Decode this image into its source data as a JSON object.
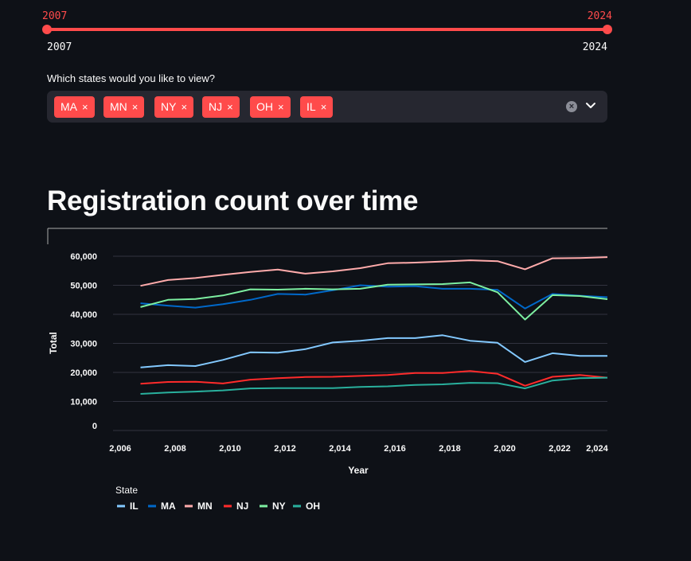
{
  "slider": {
    "min_label": "2007",
    "max_label": "2024",
    "value_low": "2007",
    "value_high": "2024",
    "accent_color": "#ff4b4b"
  },
  "multiselect": {
    "label": "Which states would you like to view?",
    "tags": [
      "MA",
      "MN",
      "NY",
      "NJ",
      "OH",
      "IL"
    ],
    "remove_glyph": "×",
    "clear_icon": "clear-circle-icon",
    "chevron_icon": "chevron-down-icon"
  },
  "header": {
    "title": "Registration count over time"
  },
  "chart_data": {
    "type": "line",
    "xlabel": "Year",
    "ylabel": "Total",
    "xlim": [
      2006,
      2024
    ],
    "ylim": [
      0,
      60000
    ],
    "x_ticks": [
      "2,006",
      "2,008",
      "2,010",
      "2,012",
      "2,014",
      "2,016",
      "2,018",
      "2,020",
      "2,022",
      "2,024"
    ],
    "y_ticks": [
      "0",
      "10,000",
      "20,000",
      "30,000",
      "40,000",
      "50,000",
      "60,000"
    ],
    "grid": true,
    "legend_title": "State",
    "legend_position": "bottom-left",
    "x": [
      2007,
      2008,
      2009,
      2010,
      2011,
      2012,
      2013,
      2014,
      2015,
      2016,
      2017,
      2018,
      2019,
      2020,
      2021,
      2022,
      2023,
      2024
    ],
    "series": [
      {
        "name": "IL",
        "color": "#83c9ff",
        "values": [
          21700,
          22500,
          22200,
          24300,
          26900,
          26800,
          28000,
          30300,
          30900,
          31800,
          31800,
          32800,
          30900,
          30200,
          23600,
          26600,
          25700,
          25700
        ]
      },
      {
        "name": "MA",
        "color": "#0068c9",
        "values": [
          43800,
          43000,
          42300,
          43500,
          45000,
          47000,
          46800,
          48300,
          50000,
          49500,
          49700,
          48800,
          48800,
          48400,
          42000,
          47000,
          46400,
          45900
        ]
      },
      {
        "name": "MN",
        "color": "#ffabab",
        "values": [
          49800,
          51800,
          52500,
          53600,
          54600,
          55400,
          54000,
          54800,
          55900,
          57600,
          57800,
          58200,
          58600,
          58300,
          55500,
          59300,
          59400,
          59700
        ]
      },
      {
        "name": "NJ",
        "color": "#ff2b2b",
        "values": [
          16100,
          16700,
          16800,
          16200,
          17500,
          18000,
          18400,
          18500,
          18800,
          19100,
          19800,
          19800,
          20500,
          19500,
          15400,
          18500,
          19100,
          18200
        ]
      },
      {
        "name": "NY",
        "color": "#7defa1",
        "values": [
          42500,
          45000,
          45300,
          46500,
          48600,
          48500,
          48800,
          48600,
          48800,
          50200,
          50300,
          50400,
          51000,
          47600,
          38200,
          46600,
          46300,
          45200
        ]
      },
      {
        "name": "OH",
        "color": "#29b09d",
        "values": [
          12600,
          13100,
          13400,
          13800,
          14500,
          14600,
          14600,
          14600,
          15000,
          15200,
          15700,
          15900,
          16400,
          16300,
          14500,
          17200,
          18000,
          18200
        ]
      }
    ]
  }
}
